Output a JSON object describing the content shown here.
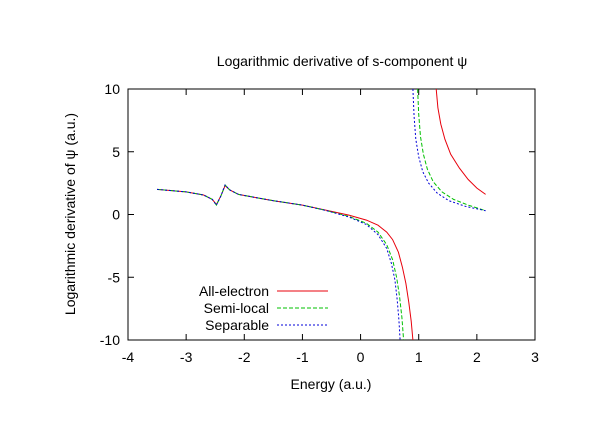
{
  "chart_data": {
    "type": "line",
    "title": "Logarithmic derivative of s-component ψ",
    "xlabel": "Energy (a.u.)",
    "ylabel": "Logarithmic derivative of ψ (a.u.)",
    "xlim": [
      -4,
      3
    ],
    "ylim": [
      -10,
      10
    ],
    "xticks": [
      -4,
      -3,
      -2,
      -1,
      0,
      1,
      2,
      3
    ],
    "yticks": [
      -10,
      -5,
      0,
      5,
      10
    ],
    "legend_position": "bottom-left",
    "grid": false,
    "series": [
      {
        "name": "All-electron",
        "color": "#e8000b",
        "dash": "solid",
        "segments": [
          [
            [
              -3.5,
              2.0
            ],
            [
              -3.0,
              1.8
            ],
            [
              -2.7,
              1.55
            ],
            [
              -2.55,
              1.2
            ],
            [
              -2.48,
              0.8
            ],
            [
              -2.4,
              1.5
            ],
            [
              -2.33,
              2.3
            ],
            [
              -2.25,
              1.95
            ],
            [
              -2.1,
              1.6
            ],
            [
              -1.8,
              1.35
            ],
            [
              -1.5,
              1.1
            ],
            [
              -1.0,
              0.75
            ],
            [
              -0.6,
              0.35
            ],
            [
              -0.2,
              -0.05
            ],
            [
              0.1,
              -0.45
            ],
            [
              0.3,
              -0.85
            ],
            [
              0.45,
              -1.4
            ],
            [
              0.55,
              -2.0
            ],
            [
              0.65,
              -3.0
            ],
            [
              0.72,
              -4.2
            ],
            [
              0.78,
              -5.5
            ],
            [
              0.83,
              -7.0
            ],
            [
              0.87,
              -8.5
            ],
            [
              0.9,
              -10.0
            ]
          ],
          [
            [
              1.3,
              10.0
            ],
            [
              1.33,
              8.5
            ],
            [
              1.38,
              7.2
            ],
            [
              1.45,
              6.0
            ],
            [
              1.55,
              4.8
            ],
            [
              1.7,
              3.7
            ],
            [
              1.85,
              2.8
            ],
            [
              2.0,
              2.1
            ],
            [
              2.15,
              1.6
            ]
          ]
        ]
      },
      {
        "name": "Semi-local",
        "color": "#00c000",
        "dash": "dashed",
        "segments": [
          [
            [
              -3.5,
              2.0
            ],
            [
              -3.0,
              1.8
            ],
            [
              -2.7,
              1.55
            ],
            [
              -2.55,
              1.2
            ],
            [
              -2.48,
              0.75
            ],
            [
              -2.4,
              1.5
            ],
            [
              -2.33,
              2.35
            ],
            [
              -2.25,
              1.95
            ],
            [
              -2.1,
              1.6
            ],
            [
              -1.8,
              1.35
            ],
            [
              -1.5,
              1.1
            ],
            [
              -1.0,
              0.75
            ],
            [
              -0.6,
              0.33
            ],
            [
              -0.2,
              -0.15
            ],
            [
              0.1,
              -0.7
            ],
            [
              0.3,
              -1.4
            ],
            [
              0.45,
              -2.4
            ],
            [
              0.55,
              -3.6
            ],
            [
              0.62,
              -5.0
            ],
            [
              0.67,
              -6.5
            ],
            [
              0.71,
              -8.2
            ],
            [
              0.74,
              -10.0
            ]
          ],
          [
            [
              0.98,
              10.0
            ],
            [
              1.0,
              8.0
            ],
            [
              1.03,
              6.2
            ],
            [
              1.08,
              4.8
            ],
            [
              1.15,
              3.6
            ],
            [
              1.25,
              2.6
            ],
            [
              1.4,
              1.8
            ],
            [
              1.6,
              1.2
            ],
            [
              1.85,
              0.75
            ],
            [
              2.15,
              0.3
            ]
          ]
        ]
      },
      {
        "name": "Separable",
        "color": "#0000d8",
        "dash": "dotted",
        "segments": [
          [
            [
              -3.5,
              2.0
            ],
            [
              -3.0,
              1.8
            ],
            [
              -2.7,
              1.55
            ],
            [
              -2.55,
              1.2
            ],
            [
              -2.48,
              0.75
            ],
            [
              -2.4,
              1.5
            ],
            [
              -2.33,
              2.35
            ],
            [
              -2.25,
              1.95
            ],
            [
              -2.1,
              1.6
            ],
            [
              -1.8,
              1.35
            ],
            [
              -1.5,
              1.1
            ],
            [
              -1.0,
              0.75
            ],
            [
              -0.6,
              0.33
            ],
            [
              -0.2,
              -0.2
            ],
            [
              0.1,
              -0.8
            ],
            [
              0.3,
              -1.6
            ],
            [
              0.45,
              -2.7
            ],
            [
              0.53,
              -3.9
            ],
            [
              0.59,
              -5.2
            ],
            [
              0.63,
              -6.8
            ],
            [
              0.66,
              -8.4
            ],
            [
              0.68,
              -10.0
            ]
          ],
          [
            [
              0.9,
              10.0
            ],
            [
              0.92,
              7.8
            ],
            [
              0.95,
              6.0
            ],
            [
              1.0,
              4.6
            ],
            [
              1.07,
              3.4
            ],
            [
              1.17,
              2.5
            ],
            [
              1.32,
              1.7
            ],
            [
              1.52,
              1.1
            ],
            [
              1.8,
              0.65
            ],
            [
              2.15,
              0.3
            ]
          ]
        ]
      }
    ]
  }
}
